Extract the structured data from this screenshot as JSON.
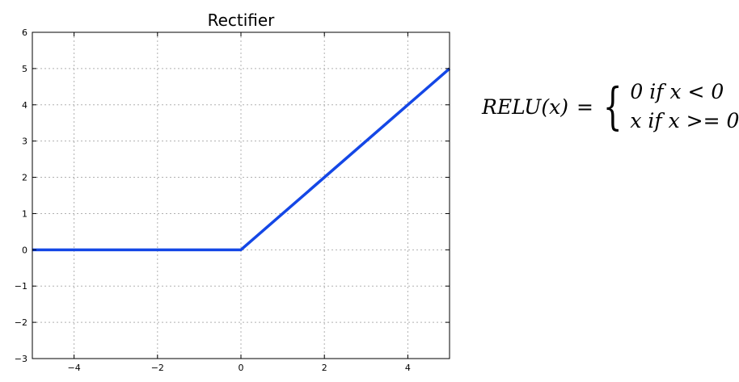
{
  "chart_data": {
    "type": "line",
    "title": "Rectifier",
    "xlim": [
      -5,
      5
    ],
    "ylim": [
      -3,
      6
    ],
    "xticks": [
      -4,
      -2,
      0,
      2,
      4
    ],
    "yticks": [
      -3,
      -2,
      -1,
      0,
      1,
      2,
      3,
      4,
      5,
      6
    ],
    "xtick_labels": [
      "−4",
      "−2",
      "0",
      "2",
      "4"
    ],
    "ytick_labels": [
      "−3",
      "−2",
      "−1",
      "0",
      "1",
      "2",
      "3",
      "4",
      "5",
      "6"
    ],
    "grid": true,
    "series": [
      {
        "x": [
          -5,
          0,
          5
        ],
        "y": [
          0,
          0,
          5
        ],
        "color": "#1447e6"
      }
    ]
  },
  "formula": {
    "lhs": "RELU(x)",
    "eq": "=",
    "case1": "0 if  x < 0",
    "case2": "x if  x >= 0"
  }
}
